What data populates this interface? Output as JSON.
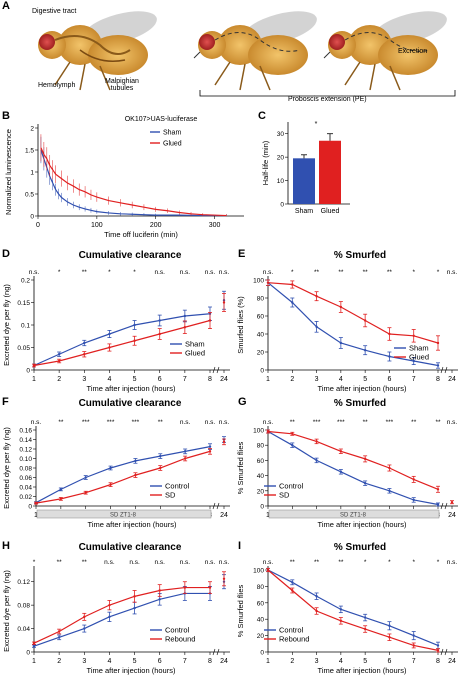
{
  "panelA": {
    "label": "A",
    "labels": {
      "digestive": "Digestive tract",
      "hemolymph": "Hemolymph",
      "malpighian": "Malpighian\ntubules",
      "excretion": "Excretion",
      "proboscis": "Proboscis extension (PE)"
    }
  },
  "panelB": {
    "label": "B",
    "title": "OK107>UAS-luciferase",
    "xlabel": "Time off luciferin (min)",
    "ylabel": "Normalized luminescence",
    "legend": [
      "Sham",
      "Glued"
    ],
    "colors": {
      "sham": "#3050b0",
      "glued": "#e02020"
    },
    "chart_data": {
      "type": "line",
      "xlim": [
        0,
        350
      ],
      "ylim": [
        0,
        2
      ],
      "xticks": [
        0,
        100,
        200,
        300
      ],
      "yticks": [
        0,
        0.5,
        1,
        1.5,
        2
      ],
      "ytick_labels": [
        "0",
        "0.5",
        "1",
        "1.5",
        "2"
      ],
      "series": [
        {
          "name": "Sham",
          "x": [
            5,
            10,
            15,
            20,
            25,
            30,
            35,
            40,
            50,
            60,
            70,
            80,
            90,
            100,
            120,
            140,
            160,
            180,
            200,
            240,
            280,
            320
          ],
          "y": [
            1.5,
            1.3,
            1.1,
            0.9,
            0.75,
            0.6,
            0.5,
            0.42,
            0.32,
            0.25,
            0.2,
            0.16,
            0.13,
            0.1,
            0.07,
            0.05,
            0.04,
            0.03,
            0.02,
            0.02,
            0.01,
            0.01
          ]
        },
        {
          "name": "Glued",
          "x": [
            5,
            10,
            15,
            20,
            25,
            30,
            40,
            50,
            60,
            70,
            80,
            90,
            100,
            120,
            140,
            160,
            180,
            200,
            220,
            240,
            260,
            280,
            320
          ],
          "y": [
            1.55,
            1.4,
            1.3,
            1.15,
            1.05,
            0.95,
            0.85,
            0.75,
            0.68,
            0.6,
            0.55,
            0.48,
            0.43,
            0.35,
            0.3,
            0.25,
            0.2,
            0.15,
            0.12,
            0.08,
            0.05,
            0.03,
            0.01
          ]
        }
      ]
    }
  },
  "panelC": {
    "label": "C",
    "ylabel": "Half-life (min)",
    "sig": "*",
    "chart_data": {
      "type": "bar",
      "categories": [
        "Sham",
        "Glued"
      ],
      "values": [
        19.5,
        27
      ],
      "errors": [
        1.5,
        3
      ],
      "colors": [
        "#3050b0",
        "#e02020"
      ],
      "ylim": [
        0,
        35
      ],
      "yticks": [
        0,
        10,
        20,
        30
      ]
    }
  },
  "panelD": {
    "label": "D",
    "title": "Cumulative clearance",
    "xlabel": "Time after injection (hours)",
    "ylabel": "Excreted dye per fly (ng)",
    "sig": [
      "n.s.",
      "*",
      "**",
      "*",
      "*",
      "n.s.",
      "n.s.",
      "n.s.",
      "n.s."
    ],
    "chart_data": {
      "type": "line",
      "categories": [
        "1",
        "2",
        "3",
        "4",
        "5",
        "6",
        "7",
        "8",
        "24"
      ],
      "ylim": [
        0,
        0.2
      ],
      "yticks": [
        0,
        0.05,
        0.1,
        0.15,
        0.2
      ],
      "ytick_labels": [
        "0",
        "0.05",
        "0.1",
        "0.15",
        "0.2"
      ],
      "series": [
        {
          "name": "Sham",
          "color": "#3050b0",
          "values": [
            0.01,
            0.035,
            0.06,
            0.08,
            0.1,
            0.11,
            0.12,
            0.125,
            0.155
          ],
          "errors": [
            0.003,
            0.005,
            0.006,
            0.008,
            0.01,
            0.012,
            0.013,
            0.015,
            0.02
          ]
        },
        {
          "name": "Glued",
          "color": "#e02020",
          "values": [
            0.01,
            0.02,
            0.035,
            0.05,
            0.065,
            0.08,
            0.095,
            0.11,
            0.15
          ],
          "errors": [
            0.003,
            0.004,
            0.006,
            0.008,
            0.01,
            0.012,
            0.014,
            0.018,
            0.02
          ]
        }
      ]
    }
  },
  "panelE": {
    "label": "E",
    "title": "% Smurfed",
    "xlabel": "Time after injection (hours)",
    "ylabel": "Smurfed flies (%)",
    "sig": [
      "n.s.",
      "*",
      "**",
      "**",
      "**",
      "**",
      "*",
      "*",
      "n.s."
    ],
    "chart_data": {
      "type": "line",
      "categories": [
        "1",
        "2",
        "3",
        "4",
        "5",
        "6",
        "7",
        "8",
        "24"
      ],
      "ylim": [
        0,
        100
      ],
      "yticks": [
        0,
        20,
        40,
        60,
        80,
        100
      ],
      "series": [
        {
          "name": "Sham",
          "color": "#3050b0",
          "values": [
            97,
            75,
            48,
            30,
            22,
            15,
            10,
            5,
            null
          ],
          "errors": [
            3,
            5,
            6,
            6,
            5,
            5,
            4,
            3,
            0
          ]
        },
        {
          "name": "Glued",
          "color": "#e02020",
          "values": [
            97,
            95,
            82,
            70,
            55,
            40,
            38,
            30,
            null
          ],
          "errors": [
            3,
            4,
            5,
            6,
            7,
            7,
            7,
            8,
            0
          ]
        }
      ]
    }
  },
  "panelF": {
    "label": "F",
    "title": "Cumulative clearance",
    "xlabel": "Time after injection (hours)",
    "ylabel": "Excreted dye per fly (ng)",
    "bar_label": "SD ZT1-8",
    "sig": [
      "n.s.",
      "**",
      "***",
      "***",
      "***",
      "**",
      "n.s.",
      "n.s.",
      "n.s."
    ],
    "chart_data": {
      "type": "line",
      "categories": [
        "1",
        "2",
        "3",
        "4",
        "5",
        "6",
        "7",
        "8",
        "24"
      ],
      "ylim": [
        0,
        0.16
      ],
      "yticks": [
        0,
        0.02,
        0.04,
        0.06,
        0.08,
        0.1,
        0.12,
        0.14,
        0.16
      ],
      "ytick_labels": [
        "0",
        "0.02",
        "0.04",
        "0.06",
        "0.08",
        "0.10",
        "0.12",
        "0.14",
        "0.16"
      ],
      "series": [
        {
          "name": "Control",
          "color": "#3050b0",
          "values": [
            0.007,
            0.035,
            0.06,
            0.08,
            0.095,
            0.105,
            0.115,
            0.125,
            0.14
          ],
          "errors": [
            0.002,
            0.003,
            0.004,
            0.004,
            0.005,
            0.005,
            0.005,
            0.006,
            0.006
          ]
        },
        {
          "name": "SD",
          "color": "#e02020",
          "values": [
            0.006,
            0.015,
            0.028,
            0.045,
            0.065,
            0.08,
            0.1,
            0.115,
            0.135
          ],
          "errors": [
            0.002,
            0.003,
            0.003,
            0.004,
            0.005,
            0.005,
            0.005,
            0.006,
            0.006
          ]
        }
      ]
    }
  },
  "panelG": {
    "label": "G",
    "title": "% Smurfed",
    "xlabel": "Time after injection (hours)",
    "ylabel": "% Smurfed flies",
    "bar_label": "SD ZT1-8",
    "sig": [
      "n.s.",
      "**",
      "***",
      "***",
      "**",
      "***",
      "**",
      "**",
      "n.s."
    ],
    "chart_data": {
      "type": "line",
      "categories": [
        "1",
        "2",
        "3",
        "4",
        "5",
        "6",
        "7",
        "8",
        "24"
      ],
      "ylim": [
        0,
        100
      ],
      "yticks": [
        0,
        20,
        40,
        60,
        80,
        100
      ],
      "series": [
        {
          "name": "Control",
          "color": "#3050b0",
          "values": [
            98,
            80,
            60,
            45,
            30,
            20,
            8,
            2,
            null
          ],
          "errors": [
            2,
            3,
            3,
            3,
            3,
            3,
            3,
            2,
            0
          ]
        },
        {
          "name": "SD",
          "color": "#e02020",
          "values": [
            98,
            95,
            85,
            72,
            62,
            50,
            35,
            22,
            5
          ],
          "errors": [
            2,
            2,
            3,
            3,
            4,
            4,
            4,
            4,
            2
          ]
        }
      ]
    }
  },
  "panelH": {
    "label": "H",
    "title": "Cumulative clearance",
    "xlabel": "Time after injection (hours)",
    "ylabel": "Excreted dye per fly (ng)",
    "sig": [
      "*",
      "**",
      "**",
      "n.s.",
      "n.s.",
      "n.s.",
      "n.s.",
      "n.s.",
      "n.s."
    ],
    "chart_data": {
      "type": "line",
      "categories": [
        "1",
        "2",
        "3",
        "4",
        "5",
        "6",
        "7",
        "8",
        "24"
      ],
      "ylim": [
        0,
        0.14
      ],
      "yticks": [
        0,
        0.04,
        0.08,
        0.12
      ],
      "ytick_labels": [
        "0",
        "0.04",
        "0.08",
        "0.12"
      ],
      "series": [
        {
          "name": "Control",
          "color": "#3050b0",
          "values": [
            0.01,
            0.025,
            0.04,
            0.06,
            0.075,
            0.09,
            0.1,
            0.1,
            0.12
          ],
          "errors": [
            0.002,
            0.004,
            0.006,
            0.008,
            0.01,
            0.01,
            0.012,
            0.012,
            0.012
          ]
        },
        {
          "name": "Rebound",
          "color": "#e02020",
          "values": [
            0.015,
            0.035,
            0.06,
            0.08,
            0.095,
            0.105,
            0.11,
            0.11,
            0.125
          ],
          "errors": [
            0.002,
            0.004,
            0.006,
            0.008,
            0.01,
            0.01,
            0.01,
            0.01,
            0.012
          ]
        }
      ]
    }
  },
  "panelI": {
    "label": "I",
    "title": "% Smurfed",
    "xlabel": "Time after injection (hours)",
    "ylabel": "% Smurfed flies",
    "sig": [
      "n.s.",
      "**",
      "**",
      "**",
      "*",
      "*",
      "*",
      "*",
      "n.s."
    ],
    "chart_data": {
      "type": "line",
      "categories": [
        "1",
        "2",
        "3",
        "4",
        "5",
        "6",
        "7",
        "8",
        "24"
      ],
      "ylim": [
        0,
        100
      ],
      "yticks": [
        0,
        20,
        40,
        60,
        80,
        100
      ],
      "series": [
        {
          "name": "Control",
          "color": "#3050b0",
          "values": [
            100,
            85,
            68,
            52,
            42,
            32,
            20,
            8,
            null
          ],
          "errors": [
            2,
            3,
            4,
            4,
            4,
            5,
            5,
            4,
            0
          ]
        },
        {
          "name": "Rebound",
          "color": "#e02020",
          "values": [
            100,
            75,
            50,
            38,
            28,
            18,
            8,
            2,
            null
          ],
          "errors": [
            2,
            3,
            4,
            4,
            4,
            4,
            3,
            2,
            0
          ]
        }
      ]
    }
  }
}
